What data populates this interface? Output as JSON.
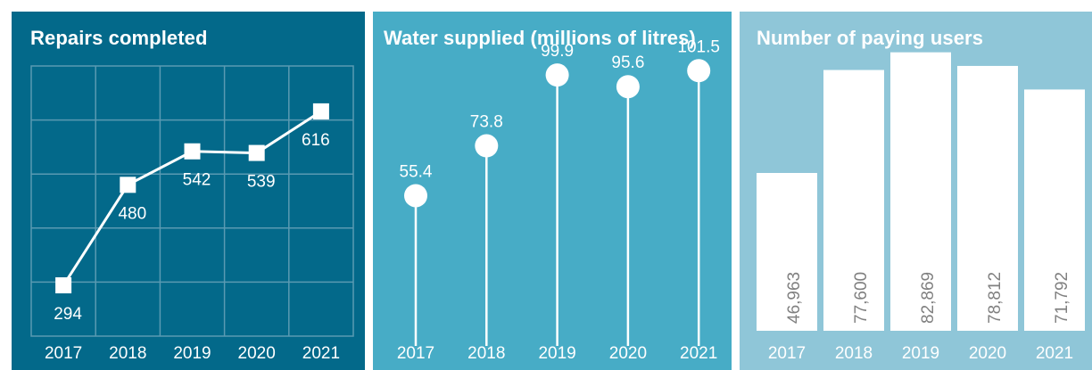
{
  "chart_data": [
    {
      "type": "line",
      "title": "Repairs completed",
      "categories": [
        "2017",
        "2018",
        "2019",
        "2020",
        "2021"
      ],
      "values": [
        294,
        480,
        542,
        539,
        616
      ],
      "ylim": [
        200,
        700
      ],
      "grid": true,
      "colors": {
        "background": "#03698a",
        "line": "#ffffff",
        "grid": "#5a9ab2"
      }
    },
    {
      "type": "lollipop",
      "title": "Water supplied (millions of litres)",
      "categories": [
        "2017",
        "2018",
        "2019",
        "2020",
        "2021"
      ],
      "values": [
        55.4,
        73.8,
        99.9,
        95.6,
        101.5
      ],
      "ylim": [
        0,
        120
      ],
      "grid": false,
      "colors": {
        "background": "#47acc6",
        "marker": "#ffffff"
      }
    },
    {
      "type": "bar",
      "title": "Number of paying users",
      "categories": [
        "2017",
        "2018",
        "2019",
        "2020",
        "2021"
      ],
      "values": [
        46963,
        77600,
        82869,
        78812,
        71792
      ],
      "value_labels": [
        "46,963",
        "77,600",
        "82,869",
        "78,812",
        "71,792"
      ],
      "ylim": [
        0,
        91000
      ],
      "grid": false,
      "colors": {
        "background": "#8fc6d8",
        "bar": "#ffffff",
        "label": "#808080"
      }
    }
  ]
}
